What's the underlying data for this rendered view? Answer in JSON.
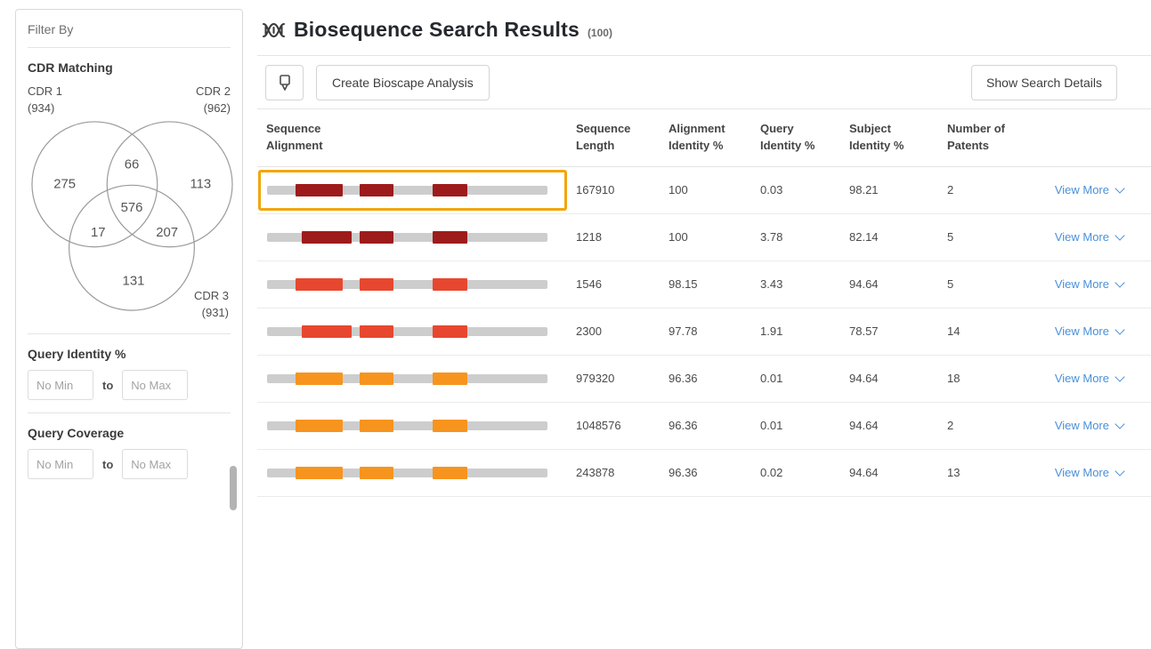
{
  "colors": {
    "highlight": "#F2A60C",
    "track": "#CDCDCD",
    "link": "#4A90D9",
    "dark_red": "#9E1B1B",
    "red": "#E8472F",
    "orange": "#F7941E"
  },
  "sidebar": {
    "title": "Filter By",
    "cdr_matching": {
      "heading": "CDR Matching",
      "sets": [
        {
          "label": "CDR 1",
          "count": "(934)"
        },
        {
          "label": "CDR 2",
          "count": "(962)"
        },
        {
          "label": "CDR 3",
          "count": "(931)"
        }
      ],
      "venn": {
        "only_cdr1": 275,
        "only_cdr2": 113,
        "only_cdr3": 131,
        "cdr1_cdr2": 66,
        "cdr1_cdr3": 17,
        "cdr2_cdr3": 207,
        "all_three": 576
      }
    },
    "query_identity": {
      "heading": "Query Identity %",
      "min_placeholder": "No Min",
      "to_label": "to",
      "max_placeholder": "No Max"
    },
    "query_coverage": {
      "heading": "Query Coverage",
      "min_placeholder": "No Min",
      "to_label": "to",
      "max_placeholder": "No Max"
    }
  },
  "header": {
    "title": "Biosequence Search Results",
    "count": "(100)"
  },
  "toolbar": {
    "create_analysis_label": "Create Bioscape Analysis",
    "show_details_label": "Show Search Details"
  },
  "table": {
    "columns": [
      {
        "l1": "Sequence",
        "l2": "Alignment"
      },
      {
        "l1": "Sequence",
        "l2": "Length"
      },
      {
        "l1": "Alignment",
        "l2": "Identity %"
      },
      {
        "l1": "Query",
        "l2": "Identity %"
      },
      {
        "l1": "Subject",
        "l2": "Identity %"
      },
      {
        "l1": "Number of",
        "l2": "Patents"
      }
    ],
    "view_more_label": "View More",
    "rows": [
      {
        "length": "167910",
        "alignment_identity": "100",
        "query_identity": "0.03",
        "subject_identity": "98.21",
        "patents": "2",
        "selected": true,
        "color": "#9E1B1B",
        "segments": [
          [
            10,
            17
          ],
          [
            33,
            12
          ],
          [
            59,
            12.5
          ]
        ]
      },
      {
        "length": "1218",
        "alignment_identity": "100",
        "query_identity": "3.78",
        "subject_identity": "82.14",
        "patents": "5",
        "selected": false,
        "color": "#9E1B1B",
        "segments": [
          [
            12.5,
            17.5
          ],
          [
            33,
            12
          ],
          [
            59,
            12.5
          ]
        ]
      },
      {
        "length": "1546",
        "alignment_identity": "98.15",
        "query_identity": "3.43",
        "subject_identity": "94.64",
        "patents": "5",
        "selected": false,
        "color": "#E8472F",
        "segments": [
          [
            10,
            17
          ],
          [
            33,
            12
          ],
          [
            59,
            12.5
          ]
        ]
      },
      {
        "length": "2300",
        "alignment_identity": "97.78",
        "query_identity": "1.91",
        "subject_identity": "78.57",
        "patents": "14",
        "selected": false,
        "color": "#E8472F",
        "segments": [
          [
            12.5,
            17.5
          ],
          [
            33,
            12
          ],
          [
            59,
            12.5
          ]
        ]
      },
      {
        "length": "979320",
        "alignment_identity": "96.36",
        "query_identity": "0.01",
        "subject_identity": "94.64",
        "patents": "18",
        "selected": false,
        "color": "#F7941E",
        "segments": [
          [
            10,
            17
          ],
          [
            33,
            12
          ],
          [
            59,
            12.5
          ]
        ]
      },
      {
        "length": "1048576",
        "alignment_identity": "96.36",
        "query_identity": "0.01",
        "subject_identity": "94.64",
        "patents": "2",
        "selected": false,
        "color": "#F7941E",
        "segments": [
          [
            10,
            17
          ],
          [
            33,
            12
          ],
          [
            59,
            12.5
          ]
        ]
      },
      {
        "length": "243878",
        "alignment_identity": "96.36",
        "query_identity": "0.02",
        "subject_identity": "94.64",
        "patents": "13",
        "selected": false,
        "color": "#F7941E",
        "segments": [
          [
            10,
            17
          ],
          [
            33,
            12
          ],
          [
            59,
            12.5
          ]
        ]
      }
    ]
  }
}
